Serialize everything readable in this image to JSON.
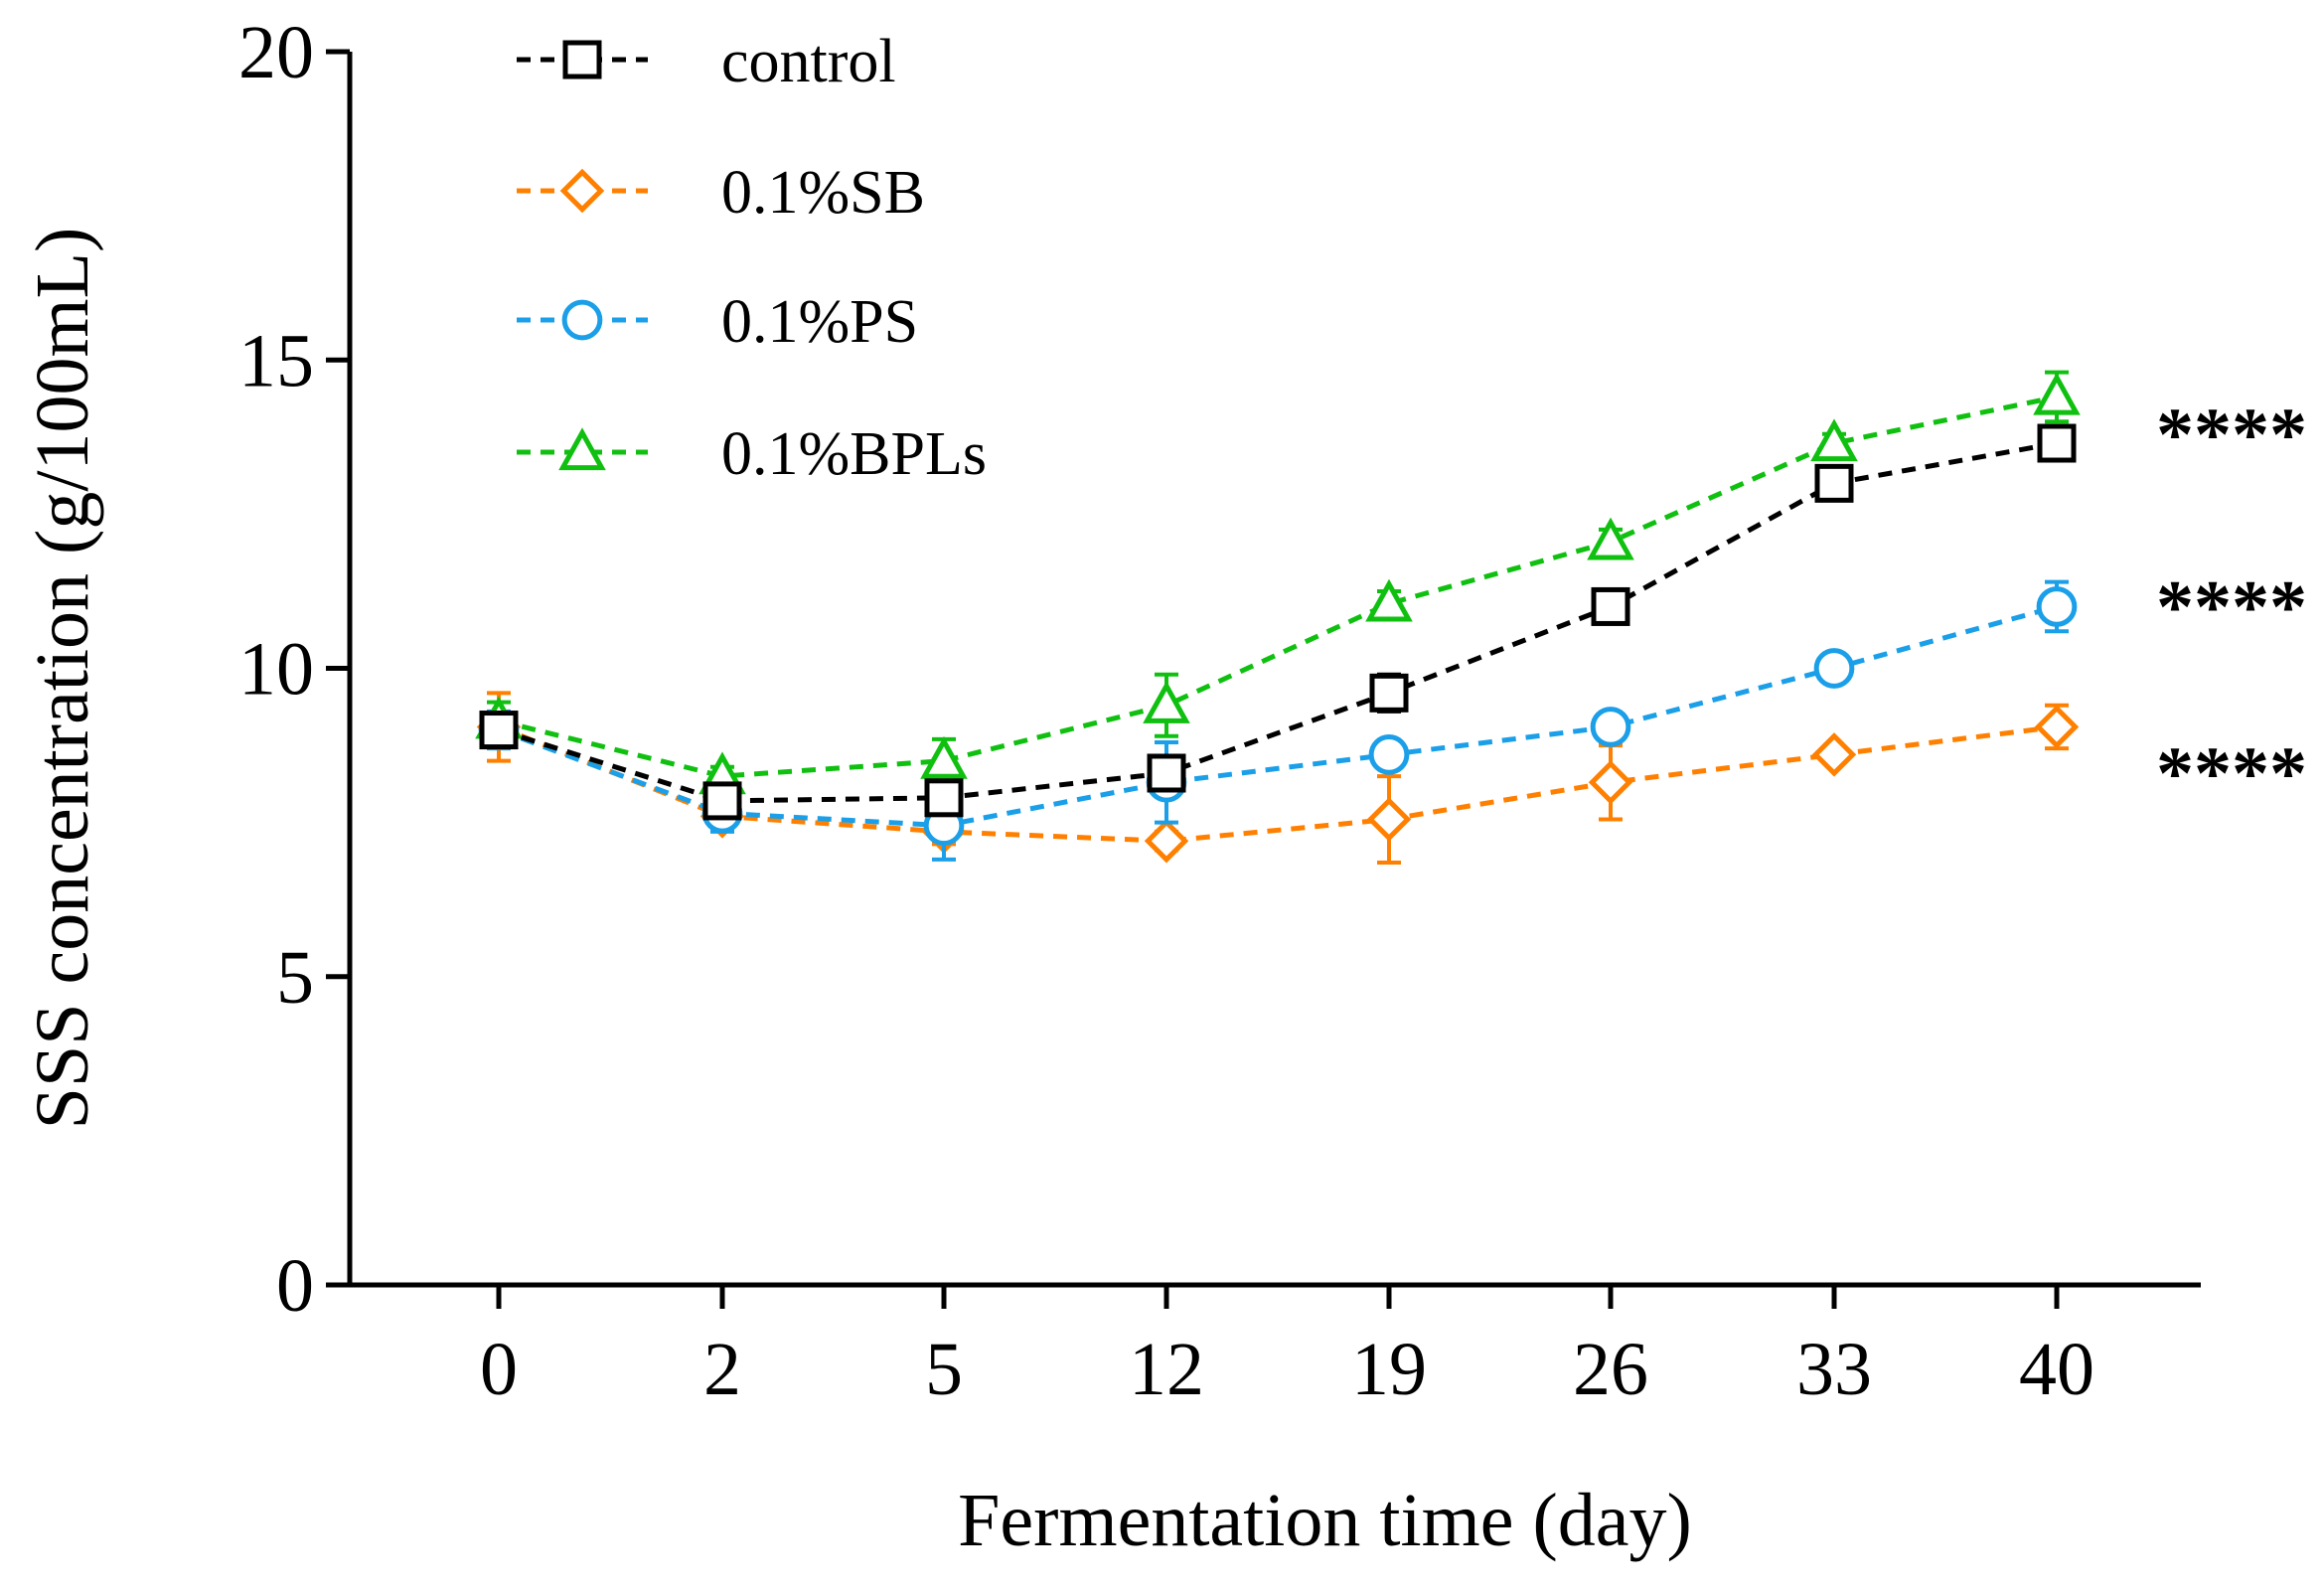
{
  "chart_data": {
    "type": "line",
    "title": "",
    "xlabel": "Fermentation time (day)",
    "ylabel": "SSS concentration (g/100mL)",
    "categories": [
      "0",
      "2",
      "5",
      "12",
      "19",
      "26",
      "33",
      "40"
    ],
    "ylim": [
      0,
      20
    ],
    "yticks": [
      0,
      5,
      10,
      15,
      20
    ],
    "grid": false,
    "legend_position": "top-left",
    "series": [
      {
        "name": "control",
        "color": "#000000",
        "marker": "square",
        "values": [
          9.0,
          7.85,
          7.9,
          8.3,
          9.6,
          11.0,
          13.0,
          13.65
        ],
        "errors": [
          0.25,
          0.2,
          0.15,
          0.2,
          0.3,
          0.2,
          0.2,
          0.25
        ]
      },
      {
        "name": "0.1%SB",
        "color": "#FF8000",
        "marker": "diamond",
        "values": [
          9.05,
          7.6,
          7.35,
          7.2,
          7.55,
          8.15,
          8.6,
          9.05
        ],
        "errors": [
          0.55,
          0.2,
          0.2,
          0.15,
          0.7,
          0.6,
          0.1,
          0.35
        ]
      },
      {
        "name": "0.1%PS",
        "color": "#1A9FE8",
        "marker": "circle",
        "values": [
          9.0,
          7.65,
          7.45,
          8.15,
          8.6,
          9.05,
          10.0,
          11.0
        ],
        "errors": [
          0.3,
          0.3,
          0.55,
          0.65,
          0.2,
          0.2,
          0.15,
          0.4
        ]
      },
      {
        "name": "0.1%BPLs",
        "color": "#10C010",
        "marker": "triangle",
        "values": [
          9.15,
          8.25,
          8.5,
          9.4,
          11.05,
          12.05,
          13.65,
          14.4
        ],
        "errors": [
          0.3,
          0.15,
          0.35,
          0.5,
          0.2,
          0.2,
          0.15,
          0.4
        ]
      }
    ],
    "annotations": [
      {
        "text": "****",
        "y": 14.0
      },
      {
        "text": "****",
        "y": 11.2
      },
      {
        "text": "****",
        "y": 8.5
      }
    ]
  }
}
